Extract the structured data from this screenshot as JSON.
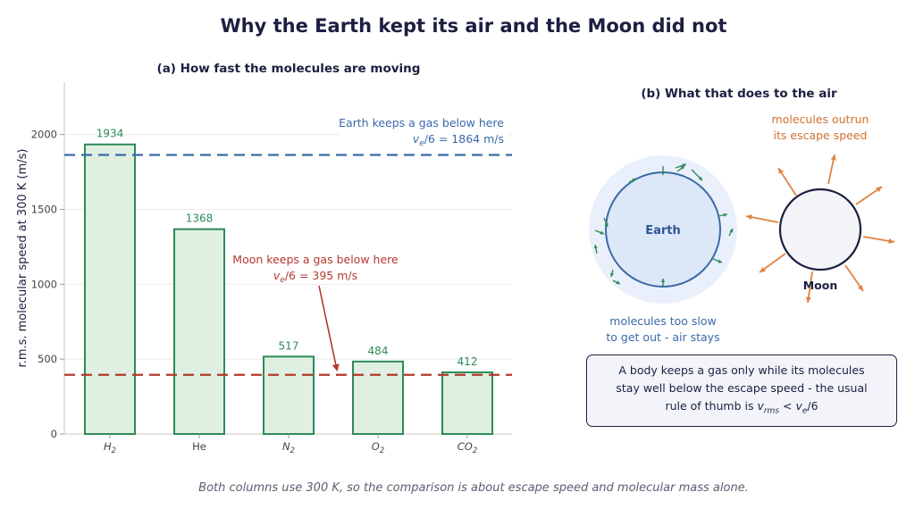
{
  "title": "Why the Earth kept its air and the Moon did not",
  "panel_a": {
    "subtitle": "(a) How fast the molecules are moving",
    "ylabel": "r.m.s. molecular speed at 300 K   (m/s)",
    "earth_line": {
      "label_line1": "Earth keeps a gas below here",
      "label_math": "v",
      "label_sub": "e",
      "label_rest": "/6 = 1864 m/s",
      "value": 1864,
      "color": "#3a69a8"
    },
    "moon_line": {
      "label_line1": "Moon keeps a gas below here",
      "label_math": "v",
      "label_sub": "e",
      "label_rest": "/6 = 395 m/s",
      "value": 395,
      "color": "#b3382c"
    }
  },
  "chart_data": {
    "type": "bar",
    "categories": [
      "H2",
      "He",
      "N2",
      "O2",
      "CO2"
    ],
    "category_display": [
      {
        "main": "H",
        "sub": "2",
        "italic": true
      },
      {
        "main": "He",
        "sub": "",
        "italic": false
      },
      {
        "main": "N",
        "sub": "2",
        "italic": true
      },
      {
        "main": "O",
        "sub": "2",
        "italic": true
      },
      {
        "main": "CO",
        "sub": "2",
        "italic": true
      }
    ],
    "values": [
      1934,
      1368,
      517,
      484,
      412
    ],
    "ylabel": "r.m.s. molecular speed at 300 K   (m/s)",
    "ylim": [
      0,
      2350
    ],
    "yticks": [
      0,
      500,
      1000,
      1500,
      2000
    ],
    "reference_lines": [
      {
        "value": 1864,
        "label": "Earth keeps a gas below here"
      },
      {
        "value": 395,
        "label": "Moon keeps a gas below here"
      }
    ],
    "grid": true,
    "bar_color": "#2e8a57",
    "bar_fill": "#dff0e2"
  },
  "panel_b": {
    "subtitle": "(b) What that does to the air",
    "earth_label": "Earth",
    "moon_label": "Moon",
    "earth_caption": [
      "molecules too slow",
      "to get out - air stays"
    ],
    "moon_caption": [
      "molecules outrun",
      "its escape speed"
    ],
    "note_line1": "A body keeps a gas only while its molecules",
    "note_line2": "stay well below the escape speed - the usual",
    "note_line3_prefix": "rule of thumb is ",
    "note_v": "v",
    "note_rms": "rms",
    "note_lt": " < ",
    "note_ve": "v",
    "note_e": "e",
    "note_end": "/6",
    "earth_color": "#3a69a8",
    "moon_arrow_color": "#de8344",
    "earth_arrow_color": "#2e8a57"
  },
  "footer": "Both columns use 300 K, so the comparison is about escape speed and molecular mass alone."
}
